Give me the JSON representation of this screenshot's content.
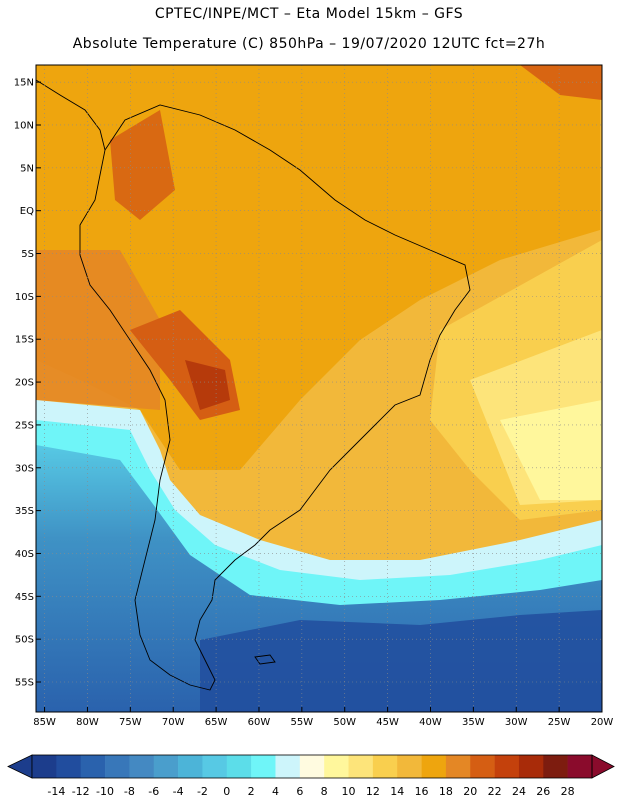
{
  "header": {
    "line1": "CPTEC/INPE/MCT –  Eta Model 15km – GFS",
    "line2": "Absolute Temperature (C) 850hPa – 19/07/2020 12UTC fct=27h"
  },
  "map": {
    "lat_labels": [
      "15N",
      "10N",
      "5N",
      "EQ",
      "5S",
      "10S",
      "15S",
      "20S",
      "25S",
      "30S",
      "35S",
      "40S",
      "45S",
      "50S",
      "55S"
    ],
    "lat_values": [
      15,
      10,
      5,
      0,
      -5,
      -10,
      -15,
      -20,
      -25,
      -30,
      -35,
      -40,
      -45,
      -50,
      -55
    ],
    "lon_labels": [
      "85W",
      "80W",
      "75W",
      "70W",
      "65W",
      "60W",
      "55W",
      "50W",
      "45W",
      "40W",
      "35W",
      "30W",
      "25W",
      "20W"
    ],
    "lon_values": [
      -85,
      -80,
      -75,
      -70,
      -65,
      -60,
      -55,
      -50,
      -45,
      -40,
      -35,
      -30,
      -25,
      -20
    ],
    "lon_range": [
      -86,
      -20
    ],
    "lat_range": [
      -58.5,
      17
    ],
    "grid": "dotted"
  },
  "colorbar": {
    "labels": [
      "-14",
      "-12",
      "-10",
      "-8",
      "-6",
      "-4",
      "-2",
      "0",
      "2",
      "4",
      "6",
      "8",
      "10",
      "12",
      "14",
      "16",
      "18",
      "20",
      "22",
      "24",
      "26",
      "28"
    ],
    "colors": [
      "#1c3d8c",
      "#214d9e",
      "#2a62ad",
      "#3877b9",
      "#4489c2",
      "#4a9ecc",
      "#4cb4d8",
      "#57c9e4",
      "#5cdde9",
      "#6ff5f8",
      "#cdf5fb",
      "#fffbe0",
      "#fff79c",
      "#fde47a",
      "#f9cf4e",
      "#f2b83a",
      "#eea50e",
      "#e48725",
      "#d55e13",
      "#c4410c",
      "#a82b09",
      "#7d1c0f",
      "#8a0b2c"
    ]
  }
}
